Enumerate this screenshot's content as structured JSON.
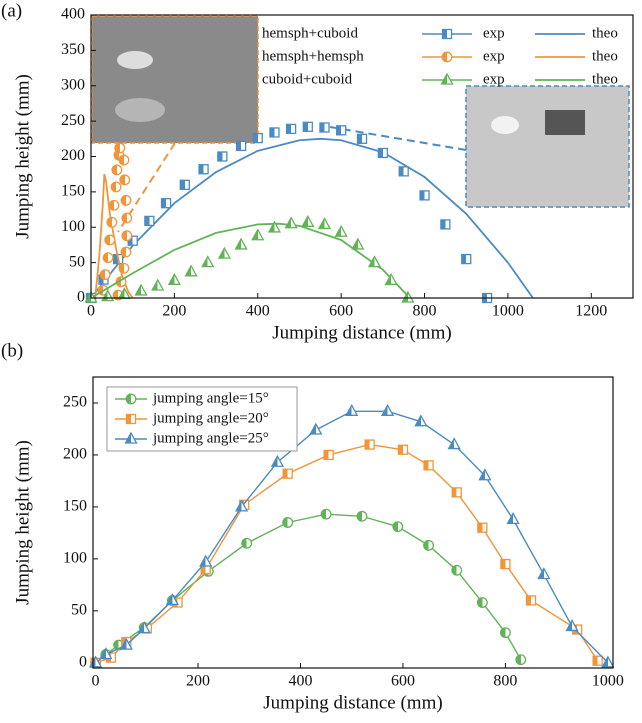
{
  "chart_data": [
    {
      "type": "line",
      "panel_label": "(a)",
      "xlabel": "Jumping distance (mm)",
      "ylabel": "Jumping height (mm)",
      "xlim": [
        0,
        1300
      ],
      "ylim": [
        0,
        400
      ],
      "xticks": [
        0,
        200,
        400,
        600,
        800,
        1000,
        1200
      ],
      "yticks": [
        0,
        50,
        100,
        150,
        200,
        250,
        300,
        350,
        400
      ],
      "exp_label": "exp",
      "theo_label": "theo",
      "series": [
        {
          "name": "hemsph+cuboid",
          "color": "#4a8bc4",
          "marker": "square",
          "exp_x": [
            0,
            30,
            65,
            100,
            140,
            180,
            225,
            270,
            315,
            360,
            400,
            440,
            480,
            520,
            560,
            600,
            650,
            700,
            750,
            800,
            850,
            900,
            950
          ],
          "exp_y": [
            0,
            26,
            55,
            81,
            109,
            134,
            160,
            182,
            200,
            215,
            226,
            234,
            239,
            242,
            241,
            237,
            225,
            205,
            179,
            145,
            104,
            55,
            0
          ],
          "theo_x": [
            0,
            100,
            200,
            300,
            400,
            500,
            550,
            600,
            700,
            800,
            900,
            1000,
            1060
          ],
          "theo_y": [
            0,
            74,
            134,
            178,
            208,
            223,
            225,
            223,
            206,
            171,
            119,
            50,
            0
          ]
        },
        {
          "name": "hemsph+hemsph",
          "color": "#f0953a",
          "marker": "circle",
          "exp_x": [
            29,
            34,
            41,
            45,
            50,
            55,
            60,
            62,
            67,
            69,
            79,
            81,
            84,
            86,
            86,
            84,
            79,
            72,
            65
          ],
          "exp_y": [
            11,
            33,
            57,
            82,
            107,
            131,
            157,
            181,
            202,
            212,
            195,
            167,
            138,
            113,
            88,
            65,
            42,
            23,
            4
          ],
          "theo_x": [
            10,
            20,
            28,
            32,
            36,
            45,
            60,
            75,
            90,
            100
          ],
          "theo_y": [
            0,
            60,
            130,
            175,
            165,
            120,
            70,
            30,
            8,
            0
          ]
        },
        {
          "name": "cuboid+cuboid",
          "color": "#62b358",
          "marker": "triangle",
          "exp_x": [
            0,
            40,
            80,
            120,
            160,
            200,
            240,
            280,
            320,
            360,
            400,
            440,
            480,
            520,
            560,
            600,
            640,
            680,
            720,
            760
          ],
          "exp_y": [
            0,
            2,
            5,
            10,
            17,
            25,
            37,
            50,
            62,
            75,
            88,
            99,
            105,
            107,
            104,
            93,
            75,
            50,
            25,
            0
          ],
          "theo_x": [
            0,
            100,
            200,
            300,
            400,
            450,
            500,
            600,
            700,
            765
          ],
          "theo_y": [
            0,
            35,
            68,
            92,
            104,
            105,
            102,
            82,
            40,
            0
          ]
        }
      ]
    },
    {
      "type": "line",
      "panel_label": "(b)",
      "xlabel": "Jumping distance (mm)",
      "ylabel": "Jumping height (mm)",
      "xlim": [
        -5,
        1010
      ],
      "ylim": [
        -5,
        275
      ],
      "xticks": [
        0,
        200,
        400,
        600,
        800,
        1000
      ],
      "yticks": [
        0,
        50,
        100,
        150,
        200,
        250
      ],
      "series": [
        {
          "name": "jumping angle=15°",
          "color": "#62b358",
          "marker": "circle",
          "x": [
            0,
            20,
            45,
            95,
            150,
            220,
            295,
            375,
            450,
            520,
            590,
            650,
            705,
            755,
            800,
            830
          ],
          "values": [
            0,
            8,
            17,
            34,
            60,
            88,
            115,
            135,
            143,
            141,
            131,
            113,
            89,
            58,
            29,
            3
          ]
        },
        {
          "name": "jumping angle=20°",
          "color": "#f0953a",
          "marker": "square",
          "x": [
            0,
            30,
            60,
            100,
            160,
            215,
            290,
            375,
            455,
            535,
            600,
            650,
            705,
            755,
            800,
            850,
            940,
            980
          ],
          "values": [
            0,
            5,
            20,
            33,
            58,
            90,
            152,
            182,
            200,
            210,
            205,
            190,
            164,
            130,
            95,
            60,
            32,
            2
          ]
        },
        {
          "name": "jumping angle=25°",
          "color": "#4a8bc4",
          "marker": "triangle",
          "x": [
            0,
            20,
            60,
            95,
            150,
            215,
            285,
            355,
            430,
            500,
            570,
            635,
            700,
            760,
            815,
            875,
            930,
            1000
          ],
          "values": [
            0,
            8,
            17,
            33,
            60,
            97,
            150,
            193,
            224,
            242,
            242,
            232,
            210,
            180,
            138,
            85,
            35,
            0
          ]
        }
      ]
    }
  ]
}
